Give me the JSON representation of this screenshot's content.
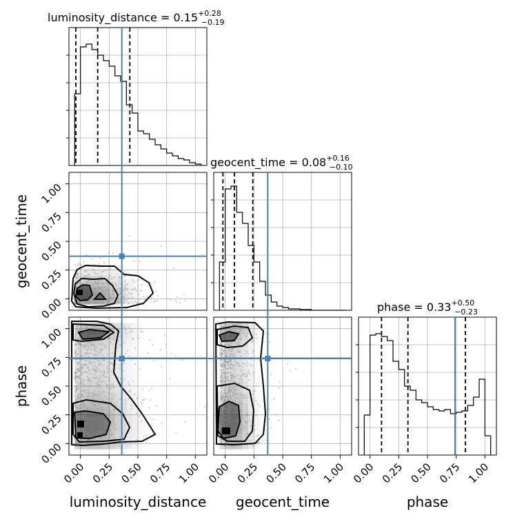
{
  "chart_data": {
    "type": "corner",
    "parameters": [
      "luminosity_distance",
      "geocent_time",
      "phase"
    ],
    "axis_range": [
      -0.1,
      1.1
    ],
    "ticks": [
      0.0,
      0.25,
      0.5,
      0.75,
      1.0
    ],
    "tick_labels": [
      "0.00",
      "0.25",
      "0.50",
      "0.75",
      "1.00"
    ],
    "grid": true,
    "truths": {
      "luminosity_distance": 0.36,
      "geocent_time": 0.37,
      "phase": 0.74
    },
    "colors": {
      "truth": "#4682b4",
      "hist": "#000000",
      "grid": "#b0b0b0",
      "points": "#9a9a9a"
    },
    "titles": [
      {
        "param": "luminosity_distance",
        "label": "luminosity_distance = 0.15",
        "up": "+0.28",
        "down": "−0.19"
      },
      {
        "param": "geocent_time",
        "label": "geocent_time = 0.08",
        "up": "+0.16",
        "down": "−0.10"
      },
      {
        "param": "phase",
        "label": "phase = 0.33",
        "up": "+0.50",
        "down": "−0.23"
      }
    ],
    "histograms": [
      {
        "param": "luminosity_distance",
        "bin_edges": [
          -0.05,
          0.0,
          0.05,
          0.1,
          0.15,
          0.2,
          0.25,
          0.3,
          0.35,
          0.4,
          0.45,
          0.5,
          0.55,
          0.6,
          0.65,
          0.7,
          0.75,
          0.8,
          0.85,
          0.9,
          0.95,
          1.0,
          1.05
        ],
        "heights": [
          0.52,
          0.86,
          0.88,
          0.84,
          0.8,
          0.76,
          0.72,
          0.65,
          0.61,
          0.44,
          0.38,
          0.25,
          0.23,
          0.19,
          0.15,
          0.12,
          0.09,
          0.07,
          0.05,
          0.04,
          0.02,
          0.01
        ],
        "quantiles": [
          -0.04,
          0.15,
          0.43
        ]
      },
      {
        "param": "geocent_time",
        "bin_edges": [
          -0.05,
          0.0,
          0.05,
          0.1,
          0.15,
          0.2,
          0.25,
          0.3,
          0.35,
          0.4,
          0.45,
          0.5,
          0.55,
          0.6,
          0.65,
          0.7,
          0.75,
          0.8,
          0.85,
          0.9,
          0.95,
          1.0,
          1.05
        ],
        "heights": [
          0.35,
          0.88,
          0.9,
          0.71,
          0.63,
          0.47,
          0.35,
          0.21,
          0.11,
          0.06,
          0.03,
          0.02,
          0.01,
          0.01,
          0.005,
          0.005,
          0.0,
          0.0,
          0.0,
          0.0,
          0.0,
          0.0
        ],
        "quantiles": [
          -0.02,
          0.08,
          0.24
        ]
      },
      {
        "param": "phase",
        "bin_edges": [
          -0.05,
          0.0,
          0.05,
          0.1,
          0.15,
          0.2,
          0.25,
          0.3,
          0.35,
          0.4,
          0.45,
          0.5,
          0.55,
          0.6,
          0.65,
          0.7,
          0.75,
          0.8,
          0.85,
          0.9,
          0.95,
          1.0,
          1.05
        ],
        "heights": [
          0.29,
          0.87,
          0.88,
          0.86,
          0.83,
          0.68,
          0.62,
          0.5,
          0.47,
          0.4,
          0.38,
          0.35,
          0.33,
          0.32,
          0.33,
          0.3,
          0.31,
          0.32,
          0.36,
          0.42,
          0.55,
          0.14
        ],
        "quantiles": [
          0.1,
          0.33,
          0.83
        ]
      }
    ]
  }
}
